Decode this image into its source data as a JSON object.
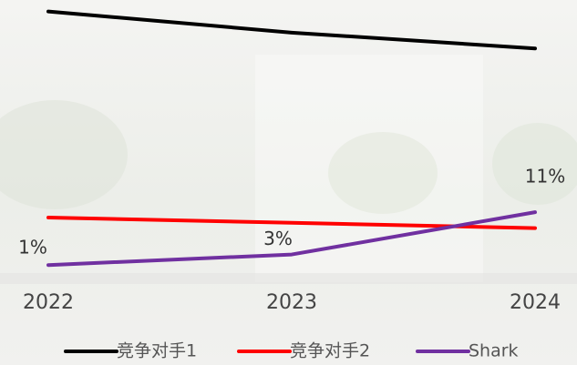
{
  "chart_data": {
    "type": "line",
    "categories": [
      "2022",
      "2023",
      "2024"
    ],
    "series": [
      {
        "name": "竞争对手1",
        "color": "#000000",
        "values": [
          49,
          45,
          42
        ]
      },
      {
        "name": "竞争对手2",
        "color": "#ff0000",
        "values": [
          10,
          9,
          8
        ]
      },
      {
        "name": "Shark",
        "color": "#7030a0",
        "values": [
          1,
          3,
          11
        ],
        "value_labels": [
          "1%",
          "3%",
          "11%"
        ]
      }
    ],
    "ylim": [
      0,
      51
    ],
    "legend": "bottom"
  }
}
